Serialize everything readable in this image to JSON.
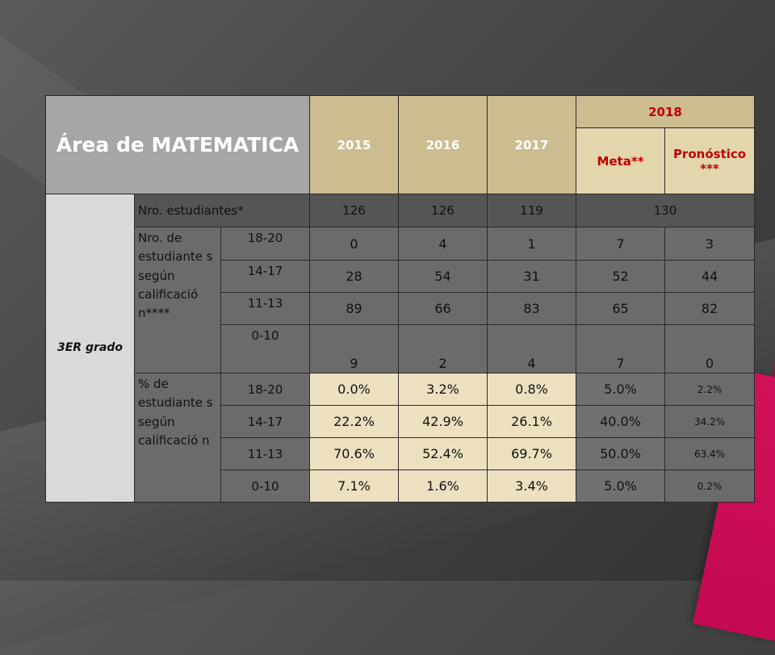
{
  "table": {
    "title": "Área de MATEMATICA",
    "years": [
      "2015",
      "2016",
      "2017"
    ],
    "year_2018": "2018",
    "col_meta": "Meta**",
    "col_pronostico": "Pronóstico ***",
    "grade_label": "3ER grado",
    "row_estudiantes_label": "Nro. estudiantes*",
    "row_estudiantes_values": [
      "126",
      "126",
      "119",
      "130"
    ],
    "group_nro_label": "Nro. de estudiante s según calificació n****",
    "group_pct_label": "% de estudiante s según calificació n",
    "nro_rows": [
      {
        "range": "18-20",
        "values": [
          "0",
          "4",
          "1",
          "7",
          "3"
        ]
      },
      {
        "range": "14-17",
        "values": [
          "28",
          "54",
          "31",
          "52",
          "44"
        ]
      },
      {
        "range": "11-13",
        "values": [
          "89",
          "66",
          "83",
          "65",
          "82"
        ]
      },
      {
        "range": "0-10",
        "values": [
          "9",
          "2",
          "4",
          "7",
          "0"
        ]
      }
    ],
    "pct_rows": [
      {
        "range": "18-20",
        "values": [
          "0.0%",
          "3.2%",
          "0.8%",
          "5.0%",
          "2.2%"
        ]
      },
      {
        "range": "14-17",
        "values": [
          "22.2%",
          "42.9%",
          "26.1%",
          "40.0%",
          "34.2%"
        ]
      },
      {
        "range": "11-13",
        "values": [
          "70.6%",
          "52.4%",
          "69.7%",
          "50.0%",
          "63.4%"
        ]
      },
      {
        "range": "0-10",
        "values": [
          "7.1%",
          "1.6%",
          "3.4%",
          "5.0%",
          "0.2%"
        ]
      }
    ]
  },
  "colors": {
    "header_gold": "#ccbc90",
    "title_gray": "#a6a6a6",
    "pct_cream": "#ece0c0",
    "accent_red": "#c00000",
    "accent_pink": "#d0105a"
  }
}
